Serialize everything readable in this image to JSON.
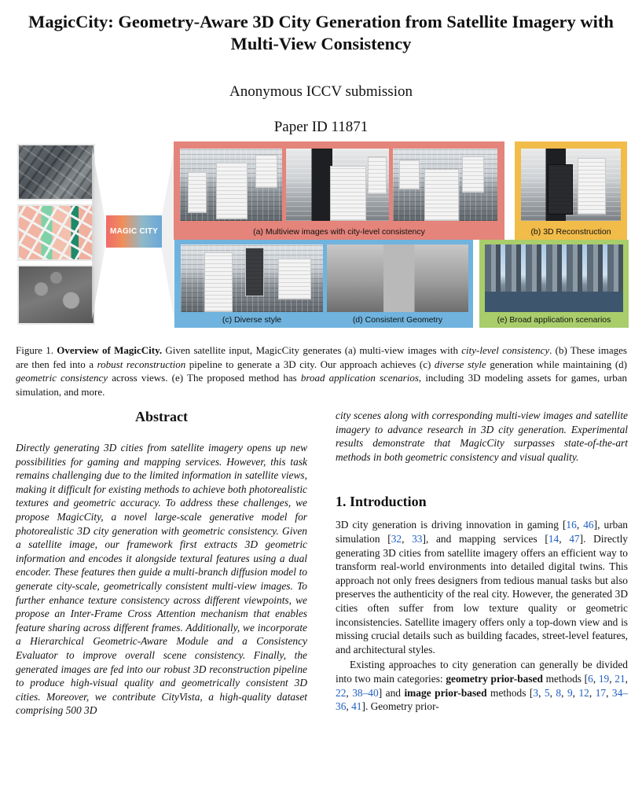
{
  "paper": {
    "title_line1": "MagicCity: Geometry-Aware 3D City Generation from Satellite Imagery with",
    "title_line2": "Multi-View Consistency",
    "author": "Anonymous ICCV submission",
    "paper_id": "Paper ID 11871"
  },
  "figure": {
    "logo_text": "MAGIC CITY",
    "captions": {
      "a": "(a) Multiview images with city-level consistency",
      "b": "(b) 3D Reconstruction",
      "c": "(c) Diverse style",
      "d": "(d) Consistent Geometry",
      "e": "(e) Broad application scenarios"
    },
    "colors": {
      "panel_a": "#e4847b",
      "panel_b": "#f1bc4a",
      "panel_c": "#6fb3de",
      "panel_e": "#a9cd6b"
    },
    "caption": {
      "label": "Figure 1.",
      "bold": "Overview of MagicCity.",
      "t1": " Given satellite input, MagicCity generates (a) multi-view images with ",
      "i1": "city-level consistency",
      "t2": ". (b) These images are then fed into a ",
      "i2": "robust reconstruction",
      "t3": " pipeline to generate a 3D city. Our approach achieves (c) ",
      "i3": "diverse style",
      "t4": " generation while maintaining (d) ",
      "i4": "geometric consistency",
      "t5": " across views. (e) The proposed method has ",
      "i5": "broad application scenarios",
      "t6": ", including 3D modeling assets for games, urban simulation, and more."
    }
  },
  "abstract": {
    "heading": "Abstract",
    "text_left": "Directly generating 3D cities from satellite imagery opens up new possibilities for gaming and mapping services. However, this task remains challenging due to the limited information in satellite views, making it difficult for existing methods to achieve both photorealistic textures and geometric accuracy. To address these challenges, we propose MagicCity, a novel large-scale generative model for photorealistic 3D city generation with geometric consistency. Given a satellite image, our framework first extracts 3D geometric information and encodes it alongside textural features using a dual encoder. These features then guide a multi-branch diffusion model to generate city-scale, geometrically consistent multi-view images. To further enhance texture consistency across different viewpoints, we propose an Inter-Frame Cross Attention mechanism that enables feature sharing across different frames. Additionally, we incorporate a Hierarchical Geometric-Aware Module and a Consistency Evaluator to improve overall scene consistency. Finally, the generated images are fed into our robust 3D reconstruction pipeline to produce high-visual quality and geometrically consistent 3D cities. Moreover, we contribute CityVista, a high-quality dataset comprising 500 3D",
    "text_right": "city scenes along with corresponding multi-view images and satellite imagery to advance research in 3D city generation. Experimental results demonstrate that MagicCity surpasses state-of-the-art methods in both geometric consistency and visual quality."
  },
  "introduction": {
    "heading": "1. Introduction",
    "p1": {
      "a": "3D city generation is driving innovation in gaming [",
      "c1": "16",
      "b": ", ",
      "c2": "46",
      "c": "], urban simulation [",
      "c3": "32",
      "d": ", ",
      "c4": "33",
      "e": "], and mapping services [",
      "c5": "14",
      "f": ", ",
      "c6": "47",
      "g": "]. Directly generating 3D cities from satellite imagery offers an efficient way to transform real-world environments into detailed digital twins. This approach not only frees designers from tedious manual tasks but also preserves the authenticity of the real city. However, the generated 3D cities often suffer from low texture quality or geometric inconsistencies. Satellite imagery offers only a top-down view and is missing crucial details such as building facades, street-level features, and architectural styles."
    },
    "p2": {
      "a": "Existing approaches to city generation can generally be divided into two main categories: ",
      "b1": "geometry prior-based",
      "b": " methods [",
      "c1": "6",
      "c": ", ",
      "c2": "19",
      "d": ", ",
      "c3": "21",
      "e": ", ",
      "c4": "22",
      "f": ", ",
      "c5": "38–40",
      "g": "] and ",
      "b2": "image prior-based",
      "h": " methods [",
      "c6": "3",
      "i": ", ",
      "c7": "5",
      "j": ", ",
      "c8": "8",
      "k": ", ",
      "c9": "9",
      "l": ", ",
      "c10": "12",
      "m": ", ",
      "c11": "17",
      "n": ", ",
      "c12": "34–36",
      "o": ", ",
      "c13": "41",
      "p": "]. Geometry prior-"
    }
  }
}
